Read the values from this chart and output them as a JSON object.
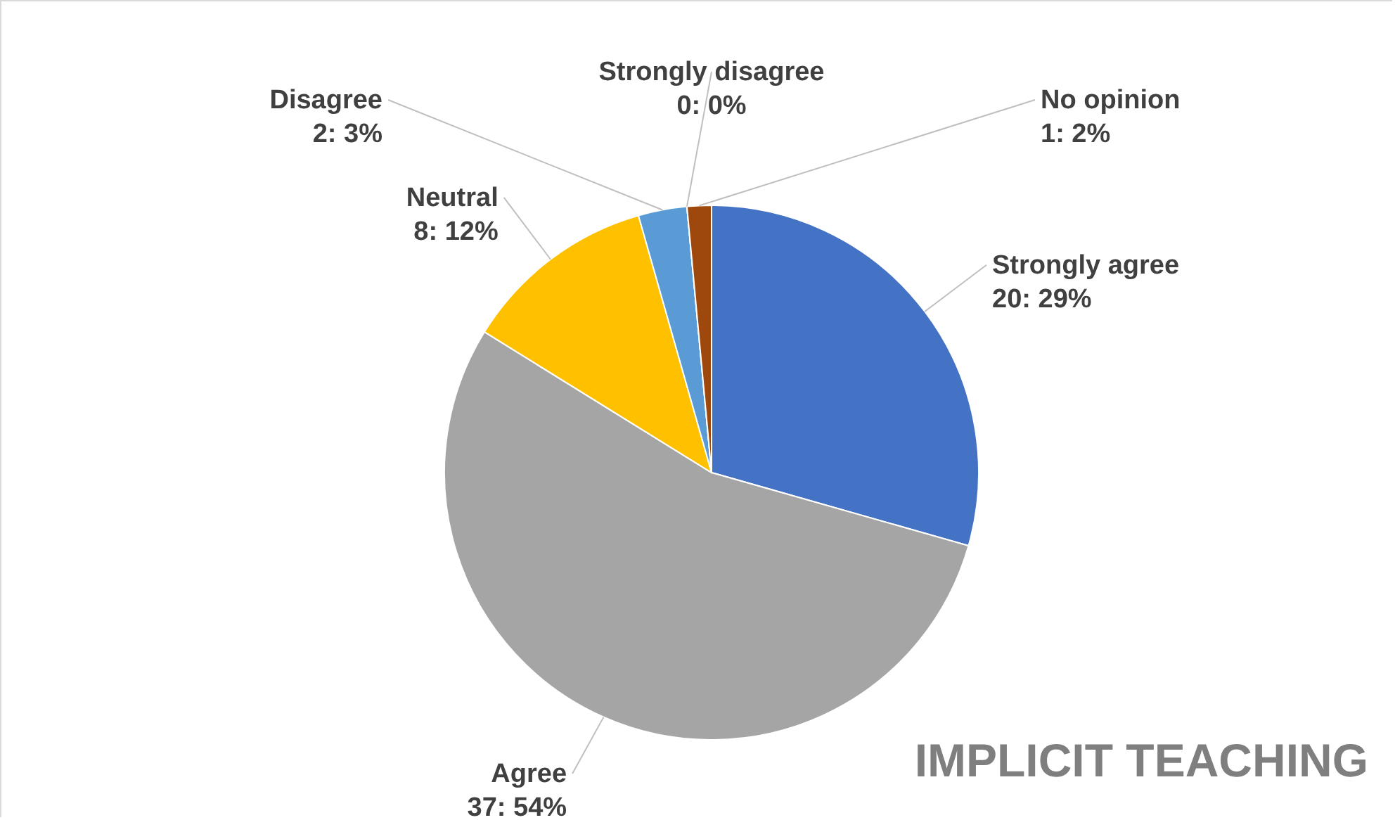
{
  "chart_data": {
    "type": "pie",
    "title": "IMPLICIT TEACHING",
    "categories": [
      "Strongly agree",
      "Agree",
      "Neutral",
      "Disagree",
      "Strongly disagree",
      "No opinion"
    ],
    "values": [
      20,
      37,
      8,
      2,
      0,
      1
    ],
    "colors": [
      "#4472c4",
      "#a5a5a5",
      "#ffc000",
      "#5b9bd5",
      "#264478",
      "#9e480e"
    ],
    "value_labels": [
      "20: 29%",
      "37: 54%",
      "8: 12%",
      "2: 3%",
      "0: 0%",
      "1: 2%"
    ]
  }
}
